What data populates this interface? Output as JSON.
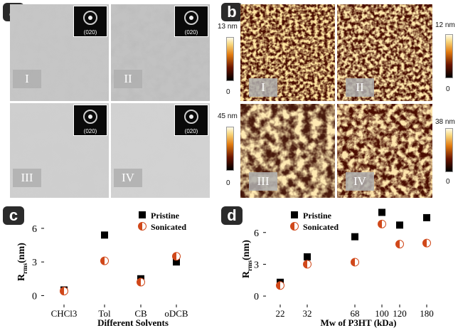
{
  "panel_labels": {
    "a": "a",
    "b": "b",
    "c": "c",
    "d": "d"
  },
  "tem": {
    "images": [
      {
        "roman": "I",
        "inset": "(020)"
      },
      {
        "roman": "II",
        "inset": "(020)"
      },
      {
        "roman": "III",
        "inset": "(020)"
      },
      {
        "roman": "IV",
        "inset": "(020)"
      }
    ]
  },
  "afm": {
    "images": [
      {
        "roman": "I",
        "cbar_top": "13 nm",
        "cbar_bottom": "0"
      },
      {
        "roman": "II",
        "cbar_top": "12 nm",
        "cbar_bottom": "0"
      },
      {
        "roman": "III",
        "cbar_top": "45 nm",
        "cbar_bottom": "0"
      },
      {
        "roman": "IV",
        "cbar_top": "38 nm",
        "cbar_bottom": "0"
      }
    ]
  },
  "colors": {
    "pristine": "#000000",
    "sonicated": "#d0481a",
    "badge": "#2b2b2b"
  },
  "chart_data": [
    {
      "type": "scatter",
      "xlabel": "Different Solvents",
      "ylabel": "R",
      "ylabel_sub": "rms",
      "ylabel_unit": "(nm)",
      "categories": [
        "CHCl3",
        "Tol",
        "CB",
        "oDCB"
      ],
      "ylim": [
        -0.8,
        7.2
      ],
      "yticks": [
        "0",
        "3",
        "6"
      ],
      "legend": "top-right",
      "series": [
        {
          "name": "Pristine",
          "marker": "square",
          "values": [
            0.5,
            5.4,
            1.5,
            3.0
          ]
        },
        {
          "name": "Sonicated",
          "marker": "half-circle",
          "values": [
            0.4,
            3.1,
            1.2,
            3.5
          ]
        }
      ]
    },
    {
      "type": "scatter",
      "xlabel": "Mw of P3HT (kDa)",
      "ylabel": "R",
      "ylabel_sub": "rms",
      "ylabel_unit": "(nm)",
      "xticks": [
        "22",
        "32",
        "68",
        "100",
        "120",
        "180"
      ],
      "ylim": [
        -0.8,
        8.2
      ],
      "yticks": [
        "0",
        "3",
        "6"
      ],
      "legend": "top-left",
      "series": [
        {
          "name": "Pristine",
          "marker": "square",
          "values": [
            1.3,
            3.7,
            5.6,
            7.9,
            6.7,
            7.4
          ]
        },
        {
          "name": "Sonicated",
          "marker": "half-circle",
          "values": [
            1.0,
            3.0,
            3.2,
            6.8,
            4.9,
            5.0
          ]
        }
      ]
    }
  ]
}
